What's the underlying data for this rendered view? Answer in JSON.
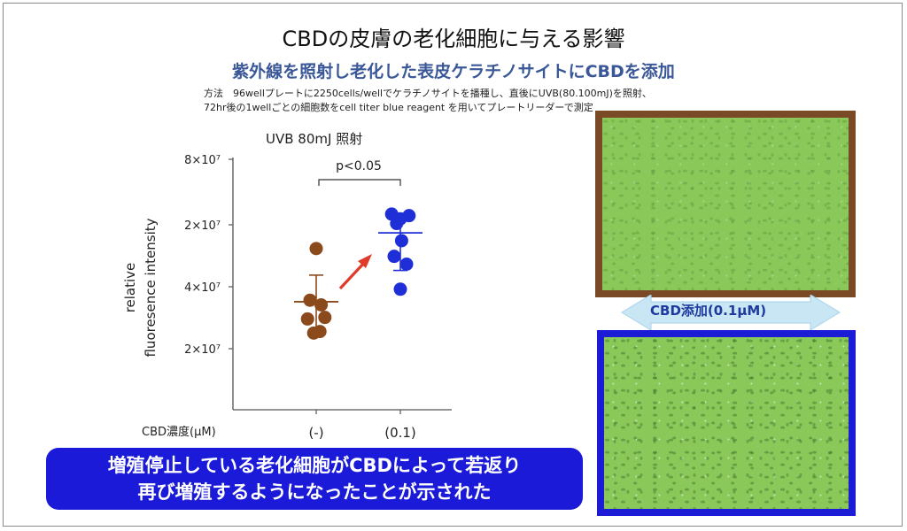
{
  "slide": {
    "title": "CBDの皮膚の老化細胞に与える影響",
    "subtitle": "紫外線を照射し老化した表皮ケラチノサイトにCBDを添加",
    "method_line1": "方法　96wellプレートに2250cells/wellでケラチノサイトを播種し、直後にUVB(80.100mJ)を照射、",
    "method_line2": "72hr後の1wellごとの細胞数をcell titer blue reagent を用いてプレートリーダーで測定",
    "photo_arrow_label": "CBD添加(0.1μM)",
    "conclusion_line1": "増殖停止している老化細胞がCBDによって若返り",
    "conclusion_line2": "再び増殖するようになったことが示された",
    "colors": {
      "title_blue": "#3a5897",
      "banner_blue": "#1a1ad8",
      "control_brown": "#8b4a1c",
      "cbd_blue": "#1f2fd8",
      "arrow_red": "#e03a2a",
      "photo_top_border": "#7a4a26",
      "photo_bottom_border": "#1c1cd6"
    }
  },
  "chart_data": {
    "type": "scatter",
    "title": "UVB 80mJ 照射",
    "ylabel_line1": "relative",
    "ylabel_line2": "fluoresence intensity",
    "xlabel": "CBD濃度(μM)",
    "categories": [
      "(-)",
      "(0.1)"
    ],
    "yticks": [
      "8×10⁷",
      "2×10⁷",
      "4×10⁷",
      "2×10⁷"
    ],
    "significance": "p<0.05",
    "series": [
      {
        "category": "(-)",
        "color": "#8b4a1c",
        "points": [
          {
            "jitter": 0.0,
            "level": 5.15
          },
          {
            "jitter": -0.25,
            "level": 3.5
          },
          {
            "jitter": 0.2,
            "level": 3.35
          },
          {
            "jitter": -0.35,
            "level": 2.9
          },
          {
            "jitter": 0.35,
            "level": 2.95
          },
          {
            "jitter": -0.1,
            "level": 2.45
          },
          {
            "jitter": 0.15,
            "level": 2.5
          }
        ],
        "mean": 3.45,
        "upper": 4.3,
        "lower": 2.55
      },
      {
        "category": "(0.1)",
        "color": "#1f2fd8",
        "points": [
          {
            "jitter": -0.35,
            "level": 6.25
          },
          {
            "jitter": 0.0,
            "level": 6.1
          },
          {
            "jitter": 0.35,
            "level": 6.2
          },
          {
            "jitter": -0.15,
            "level": 5.95
          },
          {
            "jitter": 0.05,
            "level": 5.4
          },
          {
            "jitter": -0.25,
            "level": 4.9
          },
          {
            "jitter": 0.25,
            "level": 4.65
          },
          {
            "jitter": 0.0,
            "level": 3.85
          }
        ],
        "mean": 5.65,
        "upper": 6.25,
        "lower": 4.45
      }
    ],
    "yrange": [
      0,
      8
    ]
  }
}
